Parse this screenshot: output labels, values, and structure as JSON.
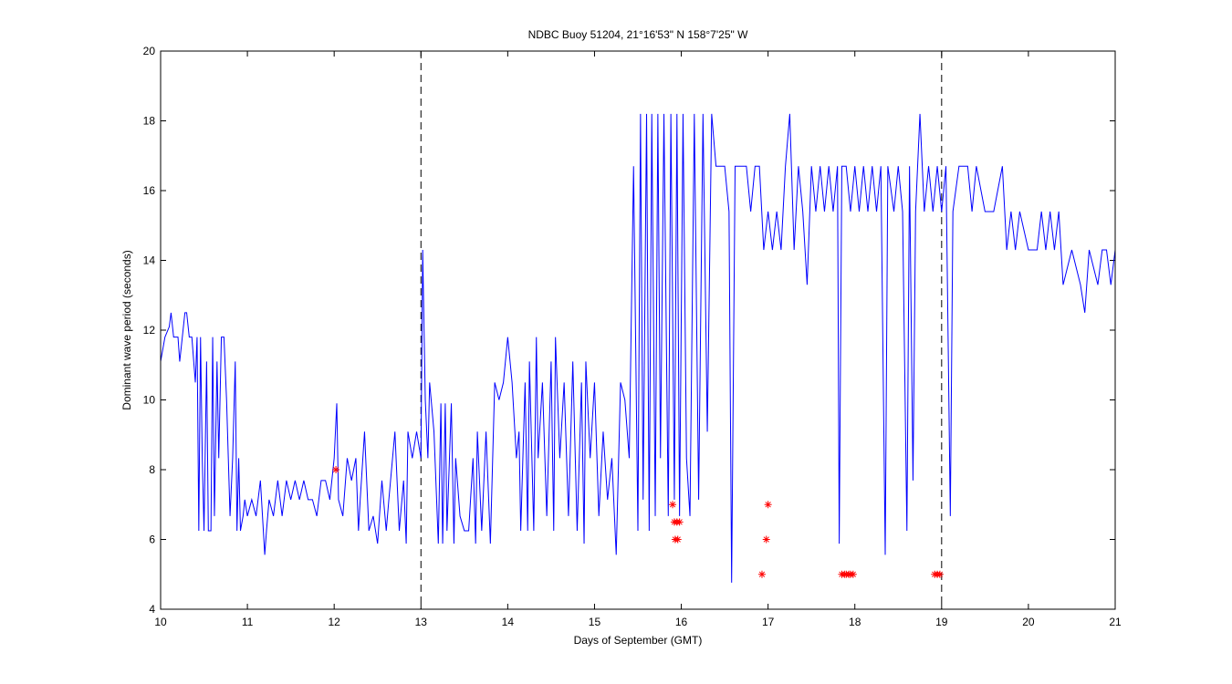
{
  "chart_data": {
    "type": "line",
    "title": "NDBC Buoy 51204, 21°16'53\" N 158°7'25\" W",
    "xlabel": "Days of September (GMT)",
    "ylabel": "Dominant wave period (seconds)",
    "xlim": [
      10,
      21
    ],
    "ylim": [
      4,
      20
    ],
    "xticks": [
      10,
      11,
      12,
      13,
      14,
      15,
      16,
      17,
      18,
      19,
      20,
      21
    ],
    "yticks": [
      4,
      6,
      8,
      10,
      12,
      14,
      16,
      18,
      20
    ],
    "vlines": [
      13,
      19
    ],
    "series": [
      {
        "type": "line",
        "color": "#0000ff",
        "x": [
          10.0,
          10.05,
          10.1,
          10.12,
          10.15,
          10.2,
          10.22,
          10.25,
          10.28,
          10.3,
          10.33,
          10.36,
          10.4,
          10.42,
          10.44,
          10.46,
          10.48,
          10.5,
          10.53,
          10.55,
          10.58,
          10.6,
          10.62,
          10.65,
          10.67,
          10.7,
          10.73,
          10.76,
          10.8,
          10.83,
          10.86,
          10.88,
          10.9,
          10.92,
          10.95,
          10.97,
          11.0,
          11.05,
          11.1,
          11.15,
          11.2,
          11.22,
          11.25,
          11.3,
          11.35,
          11.4,
          11.45,
          11.5,
          11.55,
          11.6,
          11.65,
          11.7,
          11.75,
          11.8,
          11.85,
          11.9,
          11.95,
          12.0,
          12.03,
          12.05,
          12.1,
          12.15,
          12.2,
          12.25,
          12.28,
          12.3,
          12.35,
          12.4,
          12.45,
          12.5,
          12.55,
          12.6,
          12.63,
          12.7,
          12.75,
          12.8,
          12.83,
          12.85,
          12.9,
          12.95,
          13.0,
          13.02,
          13.05,
          13.08,
          13.1,
          13.15,
          13.2,
          13.23,
          13.25,
          13.28,
          13.3,
          13.35,
          13.38,
          13.4,
          13.45,
          13.5,
          13.55,
          13.6,
          13.63,
          13.65,
          13.7,
          13.75,
          13.8,
          13.85,
          13.9,
          13.95,
          14.0,
          14.05,
          14.1,
          14.13,
          14.15,
          14.2,
          14.23,
          14.25,
          14.3,
          14.33,
          14.35,
          14.4,
          14.45,
          14.5,
          14.53,
          14.55,
          14.6,
          14.65,
          14.7,
          14.75,
          14.8,
          14.85,
          14.88,
          14.9,
          14.95,
          15.0,
          15.05,
          15.1,
          15.15,
          15.2,
          15.25,
          15.3,
          15.35,
          15.4,
          15.45,
          15.5,
          15.53,
          15.56,
          15.6,
          15.63,
          15.66,
          15.7,
          15.73,
          15.76,
          15.8,
          15.85,
          15.88,
          15.92,
          15.95,
          15.98,
          16.02,
          16.06,
          16.1,
          16.15,
          16.2,
          16.25,
          16.3,
          16.35,
          16.4,
          16.45,
          16.5,
          16.55,
          16.58,
          16.62,
          16.7,
          16.75,
          16.8,
          16.85,
          16.9,
          16.95,
          17.0,
          17.05,
          17.1,
          17.15,
          17.2,
          17.25,
          17.3,
          17.35,
          17.4,
          17.45,
          17.5,
          17.55,
          17.6,
          17.65,
          17.7,
          17.75,
          17.8,
          17.82,
          17.85,
          17.9,
          17.95,
          18.0,
          18.05,
          18.1,
          18.15,
          18.2,
          18.25,
          18.3,
          18.35,
          18.38,
          18.45,
          18.5,
          18.55,
          18.6,
          18.63,
          18.67,
          18.7,
          18.75,
          18.8,
          18.85,
          18.9,
          18.95,
          19.0,
          19.05,
          19.1,
          19.13,
          19.2,
          19.3,
          19.35,
          19.4,
          19.5,
          19.6,
          19.7,
          19.75,
          19.8,
          19.85,
          19.9,
          20.0,
          20.1,
          20.15,
          20.2,
          20.25,
          20.3,
          20.35,
          20.4,
          20.5,
          20.6,
          20.65,
          20.7,
          20.8,
          20.85,
          20.9,
          20.95,
          21.0
        ],
        "values": [
          11.1,
          11.8,
          12.1,
          12.5,
          11.8,
          11.8,
          11.1,
          11.8,
          12.5,
          12.5,
          11.8,
          11.8,
          10.5,
          11.8,
          6.25,
          11.8,
          8.33,
          6.25,
          11.1,
          6.25,
          6.25,
          11.8,
          6.67,
          11.1,
          8.33,
          11.8,
          11.8,
          10,
          6.67,
          8.33,
          11.1,
          6.25,
          8.33,
          6.25,
          6.67,
          7.14,
          6.67,
          7.14,
          6.67,
          7.69,
          5.56,
          6.25,
          7.14,
          6.67,
          7.69,
          6.67,
          7.69,
          7.14,
          7.69,
          7.14,
          7.69,
          7.14,
          7.14,
          6.67,
          7.69,
          7.69,
          7.14,
          8.33,
          9.9,
          7.14,
          6.67,
          8.33,
          7.69,
          8.33,
          6.25,
          7.14,
          9.09,
          6.25,
          6.67,
          5.88,
          7.69,
          6.25,
          7.14,
          9.09,
          6.25,
          7.69,
          5.88,
          9.09,
          8.33,
          9.09,
          8.33,
          14.3,
          10,
          8.33,
          10.5,
          9.09,
          5.88,
          9.9,
          5.88,
          9.9,
          6.25,
          9.9,
          5.88,
          8.33,
          6.67,
          6.25,
          6.25,
          8.33,
          5.88,
          9.09,
          6.25,
          9.09,
          5.88,
          10.5,
          10,
          10.5,
          11.8,
          10.5,
          8.33,
          9.09,
          6.25,
          10.5,
          6.25,
          11.1,
          6.25,
          11.8,
          8.33,
          10.5,
          6.67,
          11.1,
          6.25,
          11.8,
          8.33,
          10.5,
          6.67,
          11.1,
          6.25,
          10.5,
          5.88,
          11.1,
          8.33,
          10.5,
          6.67,
          9.09,
          7.14,
          8.33,
          5.56,
          10.5,
          10,
          8.33,
          16.7,
          6.25,
          18.2,
          7.14,
          18.2,
          6.25,
          18.2,
          6.67,
          18.2,
          8.33,
          18.2,
          6.67,
          18.2,
          7.14,
          18.2,
          6.67,
          18.2,
          8.33,
          6.67,
          18.2,
          7.14,
          18.2,
          9.09,
          18.2,
          16.7,
          16.7,
          16.7,
          15.4,
          4.76,
          16.7,
          16.7,
          16.7,
          15.4,
          16.7,
          16.7,
          14.3,
          15.4,
          14.3,
          15.4,
          14.3,
          16.7,
          18.2,
          14.3,
          16.7,
          15.4,
          13.3,
          16.7,
          15.4,
          16.7,
          15.4,
          16.7,
          15.4,
          16.7,
          5.88,
          16.7,
          16.7,
          15.4,
          16.7,
          15.4,
          16.7,
          15.4,
          16.7,
          15.4,
          16.7,
          5.56,
          16.7,
          15.4,
          16.7,
          15.4,
          6.25,
          16.7,
          7.69,
          15.4,
          18.2,
          15.4,
          16.7,
          15.4,
          16.7,
          15.4,
          16.7,
          6.67,
          15.4,
          16.7,
          16.7,
          15.4,
          16.7,
          15.4,
          15.4,
          16.7,
          14.3,
          15.4,
          14.3,
          15.4,
          14.3,
          14.3,
          15.4,
          14.3,
          15.4,
          14.3,
          15.4,
          13.3,
          14.3,
          13.3,
          12.5,
          14.3,
          13.3,
          14.3,
          14.3,
          13.3,
          14.3
        ]
      },
      {
        "type": "scatter",
        "marker": "*",
        "color": "#ff0000",
        "x": [
          12.02,
          15.9,
          15.92,
          15.95,
          15.98,
          15.93,
          15.96,
          16.93,
          16.98,
          17.0,
          17.85,
          17.88,
          17.9,
          17.93,
          17.95,
          17.98,
          18.92,
          18.95,
          18.98
        ],
        "values": [
          8,
          7,
          6.5,
          6.5,
          6.5,
          6,
          6,
          5,
          6,
          7,
          5,
          5,
          5,
          5,
          5,
          5,
          5,
          5,
          5
        ]
      }
    ]
  }
}
